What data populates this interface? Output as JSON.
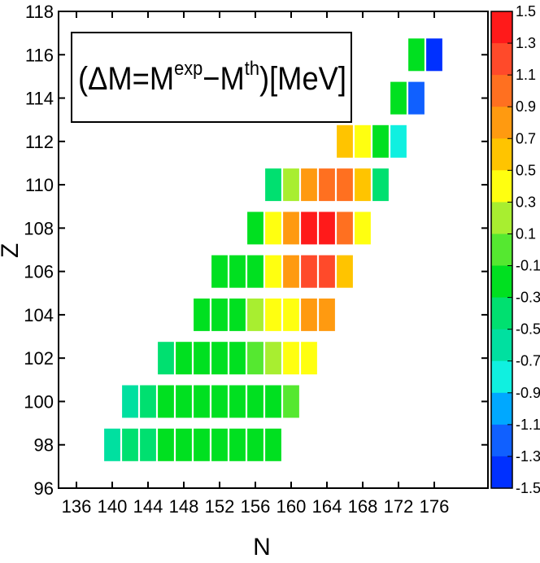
{
  "chart_data": {
    "type": "heatmap",
    "xlabel": "N",
    "ylabel": "Z",
    "xlim": [
      134,
      182
    ],
    "ylim": [
      96,
      118
    ],
    "x_ticks": [
      "136",
      "140",
      "144",
      "148",
      "152",
      "156",
      "160",
      "164",
      "168",
      "172",
      "176"
    ],
    "y_ticks": [
      "96",
      "98",
      "100",
      "102",
      "104",
      "106",
      "108",
      "110",
      "112",
      "114",
      "116",
      "118"
    ],
    "colorbar": {
      "range": [
        -1.5,
        1.5
      ],
      "labels": [
        "1.5",
        "1.3",
        "1.1",
        "0.9",
        "0.7",
        "0.5",
        "0.3",
        "0.1",
        "-0.1",
        "-0.3",
        "-0.5",
        "-0.7",
        "-0.9",
        "-1.1",
        "-1.3",
        "-1.5"
      ],
      "colors": [
        "#ff1a1a",
        "#ff4a2a",
        "#ff7020",
        "#ff9a10",
        "#ffc400",
        "#ffff10",
        "#a8ee30",
        "#55e830",
        "#00e020",
        "#00e070",
        "#00e0a0",
        "#10f0e0",
        "#00a8ff",
        "#1060ff",
        "#0030ff"
      ]
    },
    "annotation": {
      "prefix": "(ΔM=M",
      "sup1": "exp",
      "mid": "−M",
      "sup2": "th",
      "suffix": ")[MeV]"
    },
    "cells": [
      {
        "n": 140,
        "z": 98,
        "dm": -0.6
      },
      {
        "n": 142,
        "z": 98,
        "dm": -0.4
      },
      {
        "n": 144,
        "z": 98,
        "dm": -0.3
      },
      {
        "n": 146,
        "z": 98,
        "dm": -0.2
      },
      {
        "n": 148,
        "z": 98,
        "dm": -0.2
      },
      {
        "n": 150,
        "z": 98,
        "dm": -0.2
      },
      {
        "n": 152,
        "z": 98,
        "dm": -0.2
      },
      {
        "n": 154,
        "z": 98,
        "dm": -0.2
      },
      {
        "n": 156,
        "z": 98,
        "dm": -0.2
      },
      {
        "n": 158,
        "z": 98,
        "dm": -0.2
      },
      {
        "n": 142,
        "z": 100,
        "dm": -0.6
      },
      {
        "n": 144,
        "z": 100,
        "dm": -0.3
      },
      {
        "n": 146,
        "z": 100,
        "dm": -0.2
      },
      {
        "n": 148,
        "z": 100,
        "dm": -0.1
      },
      {
        "n": 150,
        "z": 100,
        "dm": -0.1
      },
      {
        "n": 152,
        "z": 100,
        "dm": -0.1
      },
      {
        "n": 154,
        "z": 100,
        "dm": -0.1
      },
      {
        "n": 156,
        "z": 100,
        "dm": -0.1
      },
      {
        "n": 158,
        "z": 100,
        "dm": -0.1
      },
      {
        "n": 160,
        "z": 100,
        "dm": 0.0
      },
      {
        "n": 146,
        "z": 102,
        "dm": -0.3
      },
      {
        "n": 148,
        "z": 102,
        "dm": -0.2
      },
      {
        "n": 150,
        "z": 102,
        "dm": -0.1
      },
      {
        "n": 152,
        "z": 102,
        "dm": -0.1
      },
      {
        "n": 154,
        "z": 102,
        "dm": -0.1
      },
      {
        "n": 156,
        "z": 102,
        "dm": 0.0
      },
      {
        "n": 158,
        "z": 102,
        "dm": 0.1
      },
      {
        "n": 160,
        "z": 102,
        "dm": 0.3
      },
      {
        "n": 162,
        "z": 102,
        "dm": 0.3
      },
      {
        "n": 150,
        "z": 104,
        "dm": -0.2
      },
      {
        "n": 152,
        "z": 104,
        "dm": -0.1
      },
      {
        "n": 154,
        "z": 104,
        "dm": -0.1
      },
      {
        "n": 156,
        "z": 104,
        "dm": 0.1
      },
      {
        "n": 158,
        "z": 104,
        "dm": 0.3
      },
      {
        "n": 160,
        "z": 104,
        "dm": 0.3
      },
      {
        "n": 162,
        "z": 104,
        "dm": 0.8
      },
      {
        "n": 164,
        "z": 104,
        "dm": 0.8
      },
      {
        "n": 152,
        "z": 106,
        "dm": -0.2
      },
      {
        "n": 154,
        "z": 106,
        "dm": -0.1
      },
      {
        "n": 156,
        "z": 106,
        "dm": -0.1
      },
      {
        "n": 158,
        "z": 106,
        "dm": 0.3
      },
      {
        "n": 160,
        "z": 106,
        "dm": 0.8
      },
      {
        "n": 162,
        "z": 106,
        "dm": 1.2
      },
      {
        "n": 164,
        "z": 106,
        "dm": 1.2
      },
      {
        "n": 166,
        "z": 106,
        "dm": 0.6
      },
      {
        "n": 156,
        "z": 108,
        "dm": -0.1
      },
      {
        "n": 158,
        "z": 108,
        "dm": 0.3
      },
      {
        "n": 160,
        "z": 108,
        "dm": 0.8
      },
      {
        "n": 162,
        "z": 108,
        "dm": 1.3
      },
      {
        "n": 164,
        "z": 108,
        "dm": 1.4
      },
      {
        "n": 166,
        "z": 108,
        "dm": 1.0
      },
      {
        "n": 168,
        "z": 108,
        "dm": 0.3
      },
      {
        "n": 158,
        "z": 110,
        "dm": -0.3
      },
      {
        "n": 160,
        "z": 110,
        "dm": 0.1
      },
      {
        "n": 162,
        "z": 110,
        "dm": 0.8
      },
      {
        "n": 164,
        "z": 110,
        "dm": 1.0
      },
      {
        "n": 166,
        "z": 110,
        "dm": 1.0
      },
      {
        "n": 168,
        "z": 110,
        "dm": 0.6
      },
      {
        "n": 170,
        "z": 110,
        "dm": -0.3
      },
      {
        "n": 166,
        "z": 112,
        "dm": 0.6
      },
      {
        "n": 168,
        "z": 112,
        "dm": 0.3
      },
      {
        "n": 170,
        "z": 112,
        "dm": -0.1
      },
      {
        "n": 172,
        "z": 112,
        "dm": -0.8
      },
      {
        "n": 172,
        "z": 114,
        "dm": -0.1
      },
      {
        "n": 174,
        "z": 114,
        "dm": -1.2
      },
      {
        "n": 174,
        "z": 116,
        "dm": -0.1
      },
      {
        "n": 176,
        "z": 116,
        "dm": -1.4
      }
    ]
  }
}
